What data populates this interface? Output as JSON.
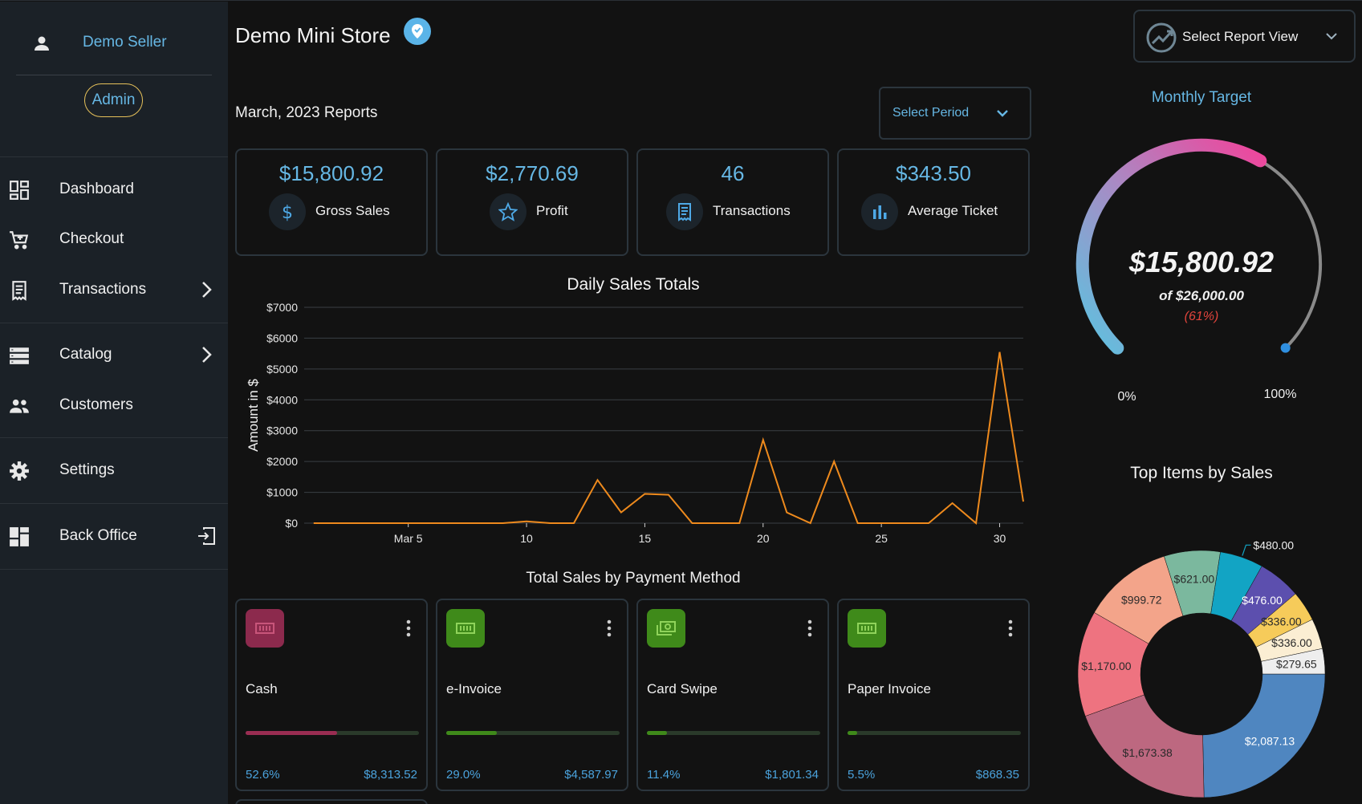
{
  "sidebar": {
    "user_name": "Demo Seller",
    "role": "Admin",
    "items": [
      {
        "label": "Dashboard",
        "icon": "dashboard-icon"
      },
      {
        "label": "Checkout",
        "icon": "cart-icon"
      },
      {
        "label": "Transactions",
        "icon": "receipt-icon"
      },
      {
        "label": "Catalog",
        "icon": "catalog-icon"
      },
      {
        "label": "Customers",
        "icon": "people-icon"
      },
      {
        "label": "Settings",
        "icon": "gear-icon"
      },
      {
        "label": "Back Office",
        "icon": "back-office-icon"
      }
    ]
  },
  "header": {
    "store_name": "Demo Mini Store",
    "report_view_label": "Select Report View"
  },
  "reports": {
    "title": "March, 2023 Reports",
    "period_label": "Select Period"
  },
  "stats": [
    {
      "value": "$15,800.92",
      "label": "Gross Sales",
      "icon": "dollar-icon"
    },
    {
      "value": "$2,770.69",
      "label": "Profit",
      "icon": "star-icon"
    },
    {
      "value": "46",
      "label": "Transactions",
      "icon": "receipt-icon"
    },
    {
      "value": "$343.50",
      "label": "Average Ticket",
      "icon": "bar-chart-icon"
    }
  ],
  "chart_data": {
    "type": "line",
    "title": "Daily Sales Totals",
    "xlabel": "",
    "ylabel": "Amount in $",
    "x": [
      1,
      2,
      3,
      4,
      5,
      6,
      7,
      8,
      9,
      10,
      11,
      12,
      13,
      14,
      15,
      16,
      17,
      18,
      19,
      20,
      21,
      22,
      23,
      24,
      25,
      26,
      27,
      28,
      29,
      30,
      31
    ],
    "values": [
      0,
      0,
      0,
      0,
      0,
      0,
      0,
      0,
      0,
      60,
      0,
      0,
      1400,
      350,
      950,
      920,
      0,
      0,
      0,
      2700,
      350,
      0,
      2000,
      0,
      0,
      0,
      0,
      650,
      0,
      5550,
      700
    ],
    "xticks": [
      {
        "x": 5,
        "label": "Mar 5"
      },
      {
        "x": 10,
        "label": "10"
      },
      {
        "x": 15,
        "label": "15"
      },
      {
        "x": 20,
        "label": "20"
      },
      {
        "x": 25,
        "label": "25"
      },
      {
        "x": 30,
        "label": "30"
      }
    ],
    "yticks": [
      "$0",
      "$1000",
      "$2000",
      "$3000",
      "$4000",
      "$5000",
      "$6000",
      "$7000"
    ],
    "ylim": [
      0,
      7000
    ],
    "grid": true,
    "line_color": "#ee8a1d"
  },
  "payments": {
    "title": "Total Sales by Payment Method",
    "methods": [
      {
        "name": "Cash",
        "percent": "52.6%",
        "amount": "$8,313.52",
        "fraction": 0.526,
        "color": "#8c2a4d",
        "bar": "#9a2d52"
      },
      {
        "name": "e-Invoice",
        "percent": "29.0%",
        "amount": "$4,587.97",
        "fraction": 0.29,
        "color": "#3f8a1a",
        "bar": "#3f8a1a"
      },
      {
        "name": "Card Swipe",
        "percent": "11.4%",
        "amount": "$1,801.34",
        "fraction": 0.114,
        "color": "#3f8a1a",
        "bar": "#3f8a1a"
      },
      {
        "name": "Paper Invoice",
        "percent": "5.5%",
        "amount": "$868.35",
        "fraction": 0.055,
        "color": "#3f8a1a",
        "bar": "#3f8a1a"
      }
    ]
  },
  "target": {
    "title": "Monthly Target",
    "value": "$15,800.92",
    "of_label": "of $26,000.00",
    "percent_label": "(61%)",
    "fraction": 0.61,
    "min_label": "0%",
    "max_label": "100%"
  },
  "top_items": {
    "title": "Top Items by Sales",
    "slices": [
      {
        "value": 2087.13,
        "label": "$2,087.13",
        "color": "#4f86c0"
      },
      {
        "value": 1673.38,
        "label": "$1,673.38",
        "color": "#bd6880"
      },
      {
        "value": 1170.0,
        "label": "$1,170.00",
        "color": "#ee7380"
      },
      {
        "value": 999.72,
        "label": "$999.72",
        "color": "#f3a48a"
      },
      {
        "value": 621.0,
        "label": "$621.00",
        "color": "#7bb89e"
      },
      {
        "value": 480.0,
        "label": "$480.00",
        "color": "#12a4c4"
      },
      {
        "value": 476.0,
        "label": "$476.00",
        "color": "#5c4fae"
      },
      {
        "value": 336.0,
        "label": "$336.00",
        "color": "#f6cb5a"
      },
      {
        "value": 336.0,
        "label": "$336.00",
        "color": "#fbeed3"
      },
      {
        "value": 279.65,
        "label": "$279.65",
        "color": "#eeeeee"
      }
    ]
  }
}
